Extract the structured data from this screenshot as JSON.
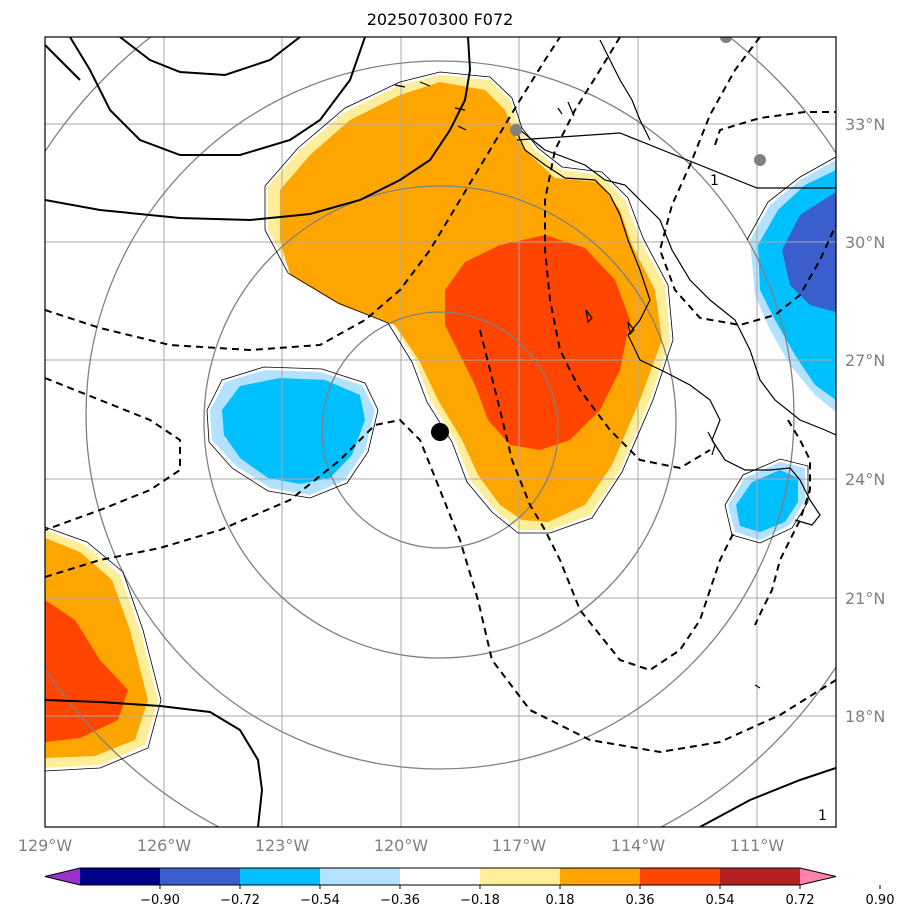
{
  "title": "2025070300 F072",
  "lat_labels": [
    "33°N",
    "30°N",
    "27°N",
    "24°N",
    "21°N",
    "18°N"
  ],
  "lon_labels": [
    "129°W",
    "126°W",
    "123°W",
    "120°W",
    "117°W",
    "114°W",
    "111°W"
  ],
  "contour_label": "1",
  "colorbar": {
    "ticks": [
      "−0.90",
      "−0.72",
      "−0.54",
      "−0.36",
      "−0.18",
      "0.18",
      "0.36",
      "0.54",
      "0.72",
      "0.90"
    ],
    "colors": [
      "#9932cc",
      "#00008b",
      "#3a5fcd",
      "#00bfff",
      "#b2e2ff",
      "#ffffff",
      "#ffee99",
      "#ffa500",
      "#ff4500",
      "#b22222",
      "#ff82ab"
    ]
  },
  "colors": {
    "orange": "#ffa500",
    "red": "#ff4500",
    "light_yellow": "#ffee99",
    "cyan": "#00bfff",
    "blue": "#3a5fcd",
    "light_blue": "#b2e2ff",
    "grid": "#aaaaaa",
    "rings": "#808080"
  }
}
